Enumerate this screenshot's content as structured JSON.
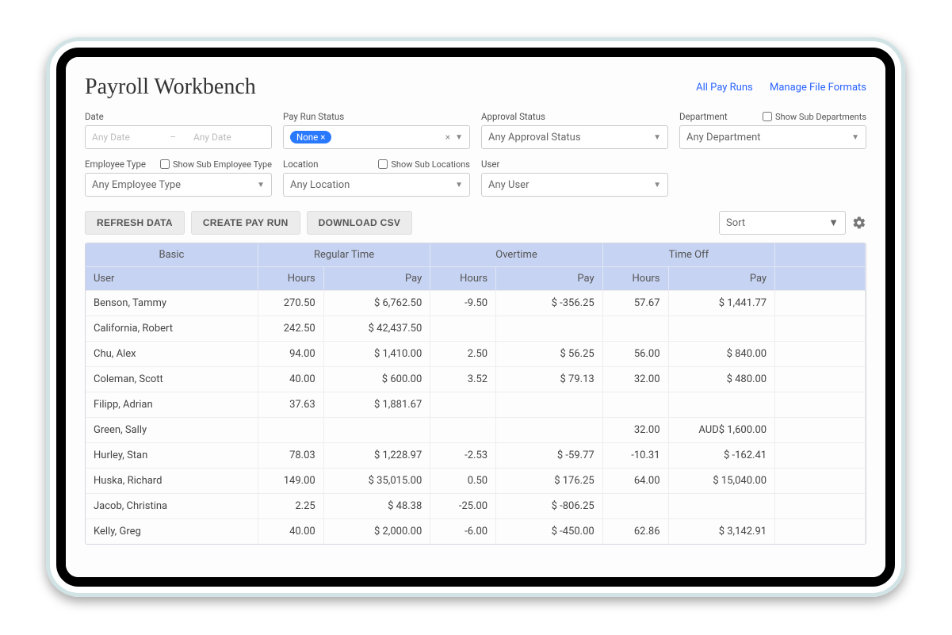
{
  "header": {
    "title": "Payroll Workbench",
    "links": {
      "all_pay_runs": "All Pay Runs",
      "manage_file_formats": "Manage File Formats"
    }
  },
  "filters": {
    "date": {
      "label": "Date",
      "from_placeholder": "Any Date",
      "to_placeholder": "Any Date"
    },
    "pay_run_status": {
      "label": "Pay Run Status",
      "chip": "None",
      "chip_close": "×",
      "clear": "×"
    },
    "approval_status": {
      "label": "Approval Status",
      "value": "Any Approval Status"
    },
    "department": {
      "label": "Department",
      "value": "Any Department",
      "sub_label": "Show Sub Departments"
    },
    "employee_type": {
      "label": "Employee Type",
      "value": "Any Employee Type",
      "sub_label": "Show Sub Employee Type"
    },
    "location": {
      "label": "Location",
      "value": "Any Location",
      "sub_label": "Show Sub Locations"
    },
    "user": {
      "label": "User",
      "value": "Any User"
    }
  },
  "actions": {
    "refresh": "REFRESH DATA",
    "create": "CREATE PAY RUN",
    "download": "DOWNLOAD CSV",
    "sort": "Sort"
  },
  "table": {
    "groups": [
      "Basic",
      "Regular Time",
      "Overtime",
      "Time Off",
      ""
    ],
    "columns": [
      "User",
      "Hours",
      "Pay",
      "Hours",
      "Pay",
      "Hours",
      "Pay",
      ""
    ],
    "rows": [
      {
        "user": "Benson, Tammy",
        "rt_h": "270.50",
        "rt_p": "$ 6,762.50",
        "ot_h": "-9.50",
        "ot_p": "$ -356.25",
        "to_h": "57.67",
        "to_p": "$ 1,441.77"
      },
      {
        "user": "California, Robert",
        "rt_h": "242.50",
        "rt_p": "$ 42,437.50",
        "ot_h": "",
        "ot_p": "",
        "to_h": "",
        "to_p": ""
      },
      {
        "user": "Chu, Alex",
        "rt_h": "94.00",
        "rt_p": "$ 1,410.00",
        "ot_h": "2.50",
        "ot_p": "$ 56.25",
        "to_h": "56.00",
        "to_p": "$ 840.00"
      },
      {
        "user": "Coleman, Scott",
        "rt_h": "40.00",
        "rt_p": "$ 600.00",
        "ot_h": "3.52",
        "ot_p": "$ 79.13",
        "to_h": "32.00",
        "to_p": "$ 480.00"
      },
      {
        "user": "Filipp, Adrian",
        "rt_h": "37.63",
        "rt_p": "$ 1,881.67",
        "ot_h": "",
        "ot_p": "",
        "to_h": "",
        "to_p": ""
      },
      {
        "user": "Green, Sally",
        "rt_h": "",
        "rt_p": "",
        "ot_h": "",
        "ot_p": "",
        "to_h": "32.00",
        "to_p": "AUD$ 1,600.00"
      },
      {
        "user": "Hurley, Stan",
        "rt_h": "78.03",
        "rt_p": "$ 1,228.97",
        "ot_h": "-2.53",
        "ot_p": "$ -59.77",
        "to_h": "-10.31",
        "to_p": "$ -162.41"
      },
      {
        "user": "Huska, Richard",
        "rt_h": "149.00",
        "rt_p": "$ 35,015.00",
        "ot_h": "0.50",
        "ot_p": "$ 176.25",
        "to_h": "64.00",
        "to_p": "$ 15,040.00"
      },
      {
        "user": "Jacob, Christina",
        "rt_h": "2.25",
        "rt_p": "$ 48.38",
        "ot_h": "-25.00",
        "ot_p": "$ -806.25",
        "to_h": "",
        "to_p": ""
      },
      {
        "user": "Kelly, Greg",
        "rt_h": "40.00",
        "rt_p": "$ 2,000.00",
        "ot_h": "-6.00",
        "ot_p": "$ -450.00",
        "to_h": "62.86",
        "to_p": "$ 3,142.91"
      }
    ]
  },
  "style": {
    "accent": "#2979ff",
    "link": "#2962ff",
    "header_bg": "#c6d3f2",
    "btn_bg": "#ececec",
    "device_border": "#000000",
    "frame_border": "#d1e3e5"
  }
}
